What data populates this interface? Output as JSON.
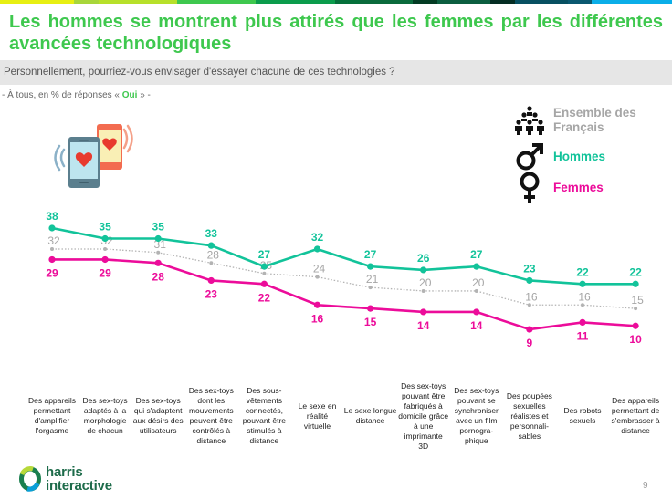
{
  "header": {
    "top_bar_colors": [
      "#e7ef12",
      "#a8d63a",
      "#b7e02a",
      "#3ec84e",
      "#0b9c4c",
      "#05703a",
      "#0a6b3c",
      "#033b23",
      "#0c5e40",
      "#042d23",
      "#075061",
      "#0a5870",
      "#0aaee8"
    ],
    "title": "Les hommes se montrent plus attirés que les femmes par les différentes avancées technologiques",
    "question": "Personnellement, pourriez-vous envisager d'essayer chacune de ces technologies ?",
    "subtitle_prefix": "- À tous, en % de réponses « ",
    "subtitle_highlight": "Oui",
    "subtitle_suffix": " » -"
  },
  "legend": {
    "items": [
      {
        "label": "Ensemble des Français",
        "icon": "people-group-icon",
        "color": "#a6a6a6"
      },
      {
        "label": "Hommes",
        "icon": "male-symbol-icon",
        "color": "#12c39a"
      },
      {
        "label": "Femmes",
        "icon": "female-symbol-icon",
        "color": "#ec0c9a"
      }
    ]
  },
  "chart_data": {
    "type": "line",
    "title": "Les hommes se montrent plus attirés que les femmes par les différentes avancées technologiques",
    "xlabel": "",
    "ylabel": "% de réponses « Oui »",
    "ylim": [
      0,
      40
    ],
    "grid": false,
    "legend_position": "top-right",
    "categories": [
      "Des appareils permettant d'amplifier l'orgasme",
      "Des sex-toys adaptés à la morphologie de chacun",
      "Des sex-toys qui s'adaptent aux désirs des utilisateurs",
      "Des sex-toys dont les mouvements peuvent être contrôlés à distance",
      "Des sous-vêtements connectés, pouvant être stimulés à distance",
      "Le sexe en réalité virtuelle",
      "Le sexe longue distance",
      "Des sex-toys pouvant être fabriqués à domicile grâce à une imprimante 3D",
      "Des sex-toys pouvant se synchroniser avec un film pornographique",
      "Des poupées sexuelles réalistes et personnalisables",
      "Des robots sexuels",
      "Des appareils permettant de s'embrasser à distance"
    ],
    "category_lines": [
      [
        "Des appareils",
        "permettant",
        "d'amplifier",
        "l'orgasme"
      ],
      [
        "Des sex-toys",
        "adaptés à la",
        "morphologie",
        "de chacun"
      ],
      [
        "Des sex-toys",
        "qui s'adaptent",
        "aux désirs des",
        "utilisateurs"
      ],
      [
        "Des sex-toys",
        "dont les",
        "mouvements",
        "peuvent être",
        "contrôlés à",
        "distance"
      ],
      [
        "Des sous-",
        "vêtements",
        "connectés,",
        "pouvant être",
        "stimulés à",
        "distance"
      ],
      [
        "Le sexe en",
        "réalité",
        "virtuelle"
      ],
      [
        "Le sexe longue",
        "distance"
      ],
      [
        "Des sex-toys",
        "pouvant être",
        "fabriqués à",
        "domicile grâce",
        "à une",
        "imprimante",
        "3D"
      ],
      [
        "Des sex-toys",
        "pouvant se",
        "synchroniser",
        "avec un film",
        "pornogra-",
        "phique"
      ],
      [
        "Des poupées",
        "sexuelles",
        "réalistes et",
        "personnali-",
        "sables"
      ],
      [
        "Des robots",
        "sexuels"
      ],
      [
        "Des appareils",
        "permettant de",
        "s'embrasser à",
        "distance"
      ]
    ],
    "series": [
      {
        "name": "Hommes",
        "color": "#12c39a",
        "style": "solid",
        "label_position": "above",
        "values": [
          38,
          35,
          35,
          33,
          27,
          32,
          27,
          26,
          27,
          23,
          22,
          22
        ]
      },
      {
        "name": "Ensemble des Français",
        "color": "#b3b3b3",
        "style": "dotted",
        "label_position": "above",
        "values": [
          32,
          32,
          31,
          28,
          25,
          24,
          21,
          20,
          20,
          16,
          16,
          15
        ]
      },
      {
        "name": "Femmes",
        "color": "#ec0c9a",
        "style": "solid",
        "label_position": "below",
        "values": [
          29,
          29,
          28,
          23,
          22,
          16,
          15,
          14,
          14,
          9,
          11,
          10
        ]
      }
    ]
  },
  "footer": {
    "logo_line1": "harris",
    "logo_line2": "interactive",
    "page_number": "9"
  }
}
